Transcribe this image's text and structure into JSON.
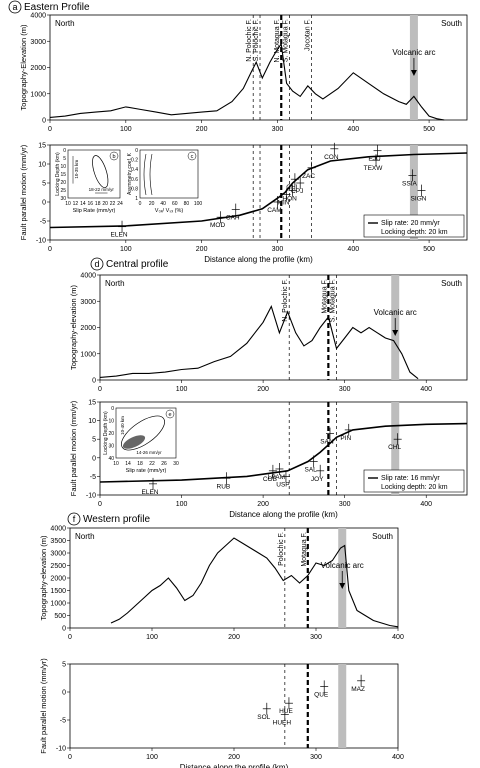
{
  "figure": {
    "panels": [
      {
        "id": "a",
        "title": "Eastern Profile"
      },
      {
        "id": "d",
        "title": "Central profile"
      },
      {
        "id": "f",
        "title": "Western profile"
      }
    ]
  },
  "chart_data": [
    {
      "id": "a-topo",
      "type": "line",
      "panel_letter": "a",
      "panel_title": "Eastern Profile",
      "ylabel": "Topography-Elevation (m)",
      "xlim": [
        0,
        550
      ],
      "ylim": [
        0,
        4000
      ],
      "yticks": [
        0,
        1000,
        2000,
        3000,
        4000
      ],
      "xticks": [
        0,
        100,
        200,
        300,
        400,
        500
      ],
      "left_label": "North",
      "right_label": "South",
      "faults": [
        {
          "x": 268,
          "label": "N. Polochic F.",
          "style": "dashed"
        },
        {
          "x": 277,
          "label": "S. Polochic F.",
          "style": "dashed"
        },
        {
          "x": 305,
          "label": "N. Motagua F.",
          "style": "thick-dashed"
        },
        {
          "x": 316,
          "label": "S. Motagua F.",
          "style": "dashed"
        },
        {
          "x": 345,
          "label": "Jocotan F.",
          "style": "dashed"
        }
      ],
      "volcanic_arc": {
        "x": 480,
        "label": "Volcanic arc"
      },
      "series": [
        {
          "x": [
            0,
            20,
            40,
            60,
            80,
            100,
            120,
            140,
            160,
            180,
            200,
            220,
            240,
            255,
            265,
            272,
            280,
            290,
            298,
            305,
            312,
            320,
            330,
            340,
            350,
            360,
            380,
            400,
            420,
            440,
            460,
            470,
            480,
            490,
            500,
            510,
            520
          ],
          "y": [
            100,
            150,
            250,
            300,
            350,
            500,
            400,
            300,
            200,
            250,
            300,
            350,
            700,
            1200,
            1800,
            2200,
            1600,
            2200,
            2600,
            2900,
            1400,
            1100,
            900,
            1300,
            1000,
            800,
            1200,
            1800,
            1400,
            1000,
            700,
            600,
            900,
            500,
            150,
            50,
            0
          ]
        }
      ]
    },
    {
      "id": "a-motion",
      "type": "scatter",
      "panel_letter": "a",
      "ylabel": "Fault parallel motion (mm/yr)",
      "xlabel": "Distance along the profile (km)",
      "xlim": [
        0,
        550
      ],
      "ylim": [
        -10,
        15
      ],
      "yticks": [
        -10,
        -5,
        0,
        5,
        10,
        15
      ],
      "xticks": [
        0,
        100,
        200,
        300,
        400,
        500
      ],
      "points": [
        {
          "label": "ELEN",
          "x": 95,
          "y": -6.5
        },
        {
          "label": "MOD",
          "x": 225,
          "y": -4
        },
        {
          "label": "CAH",
          "x": 245,
          "y": -2
        },
        {
          "label": "CAM",
          "x": 300,
          "y": 0
        },
        {
          "label": "MIN",
          "x": 312,
          "y": 2
        },
        {
          "label": "HON",
          "x": 320,
          "y": 3
        },
        {
          "label": "CHI",
          "x": 323,
          "y": 6
        },
        {
          "label": "CPJ",
          "x": 330,
          "y": 5
        },
        {
          "label": "ZAC",
          "x": 345,
          "y": 9
        },
        {
          "label": "CON",
          "x": 375,
          "y": 14
        },
        {
          "label": "EJU",
          "x": 432,
          "y": 13.5
        },
        {
          "label": "TEXW",
          "x": 430,
          "y": 11
        },
        {
          "label": "SSIA",
          "x": 478,
          "y": 7
        },
        {
          "label": "SIGN",
          "x": 490,
          "y": 3
        }
      ],
      "model_curve": {
        "x": [
          0,
          100,
          200,
          250,
          280,
          300,
          310,
          320,
          340,
          370,
          420,
          480,
          550
        ],
        "y": [
          -6.7,
          -6.3,
          -5,
          -3.5,
          -1.8,
          1,
          2.5,
          5,
          8.5,
          10.8,
          11.9,
          12.5,
          12.9
        ]
      },
      "legend": {
        "lines": [
          "Slip rate: 20 mm/yr",
          "Locking depth: 20 km"
        ],
        "position": "bottom-right"
      },
      "inset_b": {
        "letter": "b",
        "xlabel": "Slip Rate (mm/yr)",
        "ylabel": "Locking Depth (km)",
        "xticks": [
          "10",
          "12",
          "14",
          "16",
          "18",
          "20",
          "22",
          "24"
        ],
        "yticks": [
          "0",
          "5",
          "10",
          "15",
          "20",
          "25",
          "30"
        ],
        "range_x": "18-22 mm/yr",
        "range_y": "10-35 km"
      },
      "inset_c": {
        "letter": "c",
        "xlabel": "V₀ₓ/ Vₛₓ (%)",
        "ylabel": "Asymmetry coef. K",
        "xticks": [
          "0",
          "20",
          "40",
          "60",
          "80",
          "100"
        ],
        "yticks": [
          "0",
          "0.2",
          "0.4",
          "0.6",
          "0.8",
          "1"
        ]
      }
    },
    {
      "id": "d-topo",
      "type": "line",
      "panel_letter": "d",
      "panel_title": "Central profile",
      "ylabel": "Topography-elevation (m)",
      "xlim": [
        0,
        450
      ],
      "ylim": [
        0,
        4000
      ],
      "yticks": [
        0,
        1000,
        2000,
        3000,
        4000
      ],
      "xticks": [
        0,
        100,
        200,
        300,
        400
      ],
      "left_label": "North",
      "right_label": "South",
      "faults": [
        {
          "x": 232,
          "label": "N. Polochic F.",
          "style": "dashed"
        },
        {
          "x": 280,
          "label": "Motagua F.",
          "style": "thick-dashed"
        },
        {
          "x": 290,
          "label": "S. Motagua F.",
          "style": "dashed"
        }
      ],
      "volcanic_arc": {
        "x": 362,
        "label": "Volcanic arc"
      },
      "series": [
        {
          "x": [
            0,
            20,
            40,
            60,
            80,
            100,
            120,
            140,
            160,
            180,
            200,
            210,
            220,
            230,
            240,
            250,
            260,
            270,
            280,
            290,
            300,
            310,
            320,
            330,
            340,
            350,
            360,
            370,
            380,
            390
          ],
          "y": [
            100,
            150,
            250,
            250,
            300,
            400,
            450,
            700,
            900,
            1400,
            2200,
            2800,
            1800,
            2600,
            1800,
            1300,
            1500,
            2000,
            2400,
            1200,
            1600,
            2000,
            1800,
            2000,
            1800,
            1600,
            1500,
            1000,
            300,
            50
          ]
        }
      ]
    },
    {
      "id": "d-motion",
      "type": "scatter",
      "panel_letter": "d",
      "ylabel": "Fault parallel motion (mm/yr)",
      "xlabel": "Distance along the profile (km)",
      "xlim": [
        0,
        450
      ],
      "ylim": [
        -10,
        15
      ],
      "yticks": [
        -10,
        -5,
        0,
        5,
        10,
        15
      ],
      "xticks": [
        0,
        100,
        200,
        300,
        400
      ],
      "points": [
        {
          "label": "ELEN",
          "x": 65,
          "y": -7
        },
        {
          "label": "RUB",
          "x": 155,
          "y": -5.5
        },
        {
          "label": "COB",
          "x": 212,
          "y": -3.5
        },
        {
          "label": "LPAM",
          "x": 220,
          "y": -3
        },
        {
          "label": "USP",
          "x": 228,
          "y": -5
        },
        {
          "label": "SAL",
          "x": 262,
          "y": -1
        },
        {
          "label": "JOY",
          "x": 270,
          "y": -3.5
        },
        {
          "label": "SAN",
          "x": 282,
          "y": 6.5
        },
        {
          "label": "PIN",
          "x": 305,
          "y": 7.5
        },
        {
          "label": "CHL",
          "x": 365,
          "y": 5
        }
      ],
      "model_curve": {
        "x": [
          0,
          100,
          180,
          230,
          255,
          270,
          280,
          290,
          310,
          350,
          400,
          450
        ],
        "y": [
          -6.5,
          -6,
          -5,
          -3.5,
          -1,
          1.5,
          3.5,
          5.5,
          7.5,
          8.5,
          9,
          9.2
        ]
      },
      "legend": {
        "lines": [
          "Slip rate: 16 mm/yr",
          "Locking depth: 20 km"
        ],
        "position": "bottom-right"
      },
      "inset_e": {
        "letter": "e",
        "xlabel": "Slip rate (mm/yr)",
        "ylabel": "Locking Depth (km)",
        "xticks": [
          "10",
          "14",
          "18",
          "22",
          "26",
          "30"
        ],
        "yticks": [
          "0",
          "10",
          "20",
          "30",
          "40"
        ],
        "range_x": "14-26 mm/yr",
        "range_y": "10-40 km"
      }
    },
    {
      "id": "f-topo",
      "type": "line",
      "panel_letter": "f",
      "panel_title": "Western profile",
      "ylabel": "Topography-elevation (m)",
      "xlim": [
        0,
        400
      ],
      "ylim": [
        0,
        4000
      ],
      "yticks": [
        0,
        500,
        1000,
        1500,
        2000,
        2500,
        3000,
        3500,
        4000
      ],
      "xticks": [
        0,
        100,
        200,
        300,
        400
      ],
      "left_label": "North",
      "right_label": "South",
      "faults": [
        {
          "x": 262,
          "label": "Polochic F.",
          "style": "dashed"
        },
        {
          "x": 290,
          "label": "Motagua F.",
          "style": "thick-dashed"
        }
      ],
      "volcanic_arc": {
        "x": 332,
        "label": "Volcanic arc"
      },
      "series": [
        {
          "x": [
            50,
            60,
            70,
            80,
            90,
            100,
            110,
            120,
            130,
            140,
            150,
            160,
            170,
            180,
            190,
            200,
            210,
            220,
            230,
            240,
            250,
            260,
            270,
            280,
            290,
            300,
            310,
            320,
            330,
            335,
            340,
            350,
            360,
            370,
            380,
            390,
            400
          ],
          "y": [
            200,
            350,
            600,
            900,
            1200,
            1500,
            1700,
            2000,
            1600,
            1100,
            1300,
            1800,
            2500,
            3000,
            3300,
            3600,
            3400,
            3200,
            3000,
            2800,
            2400,
            1900,
            2100,
            1800,
            2100,
            2600,
            2500,
            2700,
            3200,
            3300,
            1500,
            700,
            500,
            300,
            200,
            100,
            50
          ]
        }
      ]
    },
    {
      "id": "f-motion",
      "type": "scatter",
      "panel_letter": "f",
      "ylabel": "Fault parallel motion (mm/yr)",
      "xlabel": "Distance along the profile (km)",
      "xlim": [
        0,
        400
      ],
      "ylim": [
        -10,
        5
      ],
      "yticks": [
        -10,
        -5,
        0,
        5
      ],
      "xticks": [
        0,
        100,
        200,
        300,
        400
      ],
      "points": [
        {
          "label": "SOL",
          "x": 240,
          "y": -3
        },
        {
          "label": "HUEH",
          "x": 262,
          "y": -4
        },
        {
          "label": "HUE",
          "x": 267,
          "y": -2
        },
        {
          "label": "QUE",
          "x": 310,
          "y": 1
        },
        {
          "label": "MAZ",
          "x": 355,
          "y": 2
        }
      ],
      "volcanic_arc": {
        "x": 332
      }
    }
  ]
}
